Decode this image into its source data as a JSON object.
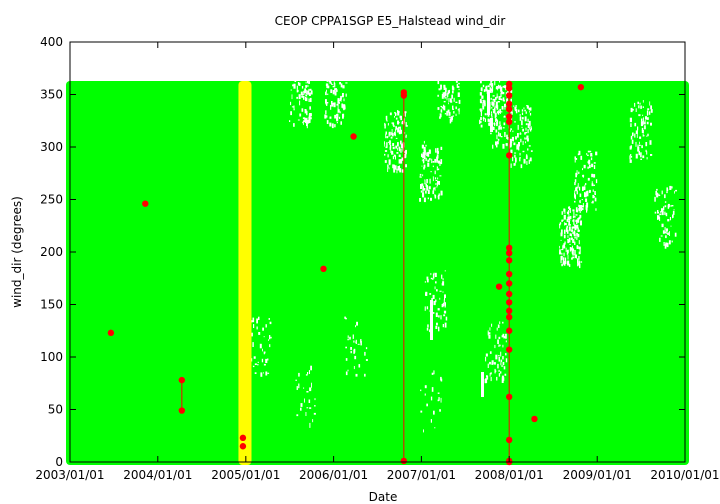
{
  "chart_data": {
    "type": "scatter",
    "title": "CEOP CPPA1SGP E5_Halstead  wind_dir",
    "xlabel": "Date",
    "ylabel": "wind_dir (degrees)",
    "xlim": [
      "2003/01/01",
      "2010/01/01"
    ],
    "ylim": [
      0,
      400
    ],
    "x_ticks": [
      "2003/01/01",
      "2004/01/01",
      "2005/01/01",
      "2006/01/01",
      "2007/01/01",
      "2008/01/01",
      "2009/01/01",
      "2010/01/01"
    ],
    "y_ticks": [
      0,
      50,
      100,
      150,
      200,
      250,
      300,
      350,
      400
    ],
    "grid": false,
    "colors": {
      "main": "#00ff00",
      "band": "#ffff00",
      "flag": "#ff0000"
    },
    "series": [
      {
        "style": "dense_band",
        "color": "#00ff00",
        "x_range": [
          "2003/01/01",
          "2010/01/01"
        ],
        "y_range": [
          0,
          360
        ]
      },
      {
        "style": "dense_band",
        "color": "#ffff00",
        "x_range": [
          "2004/12/18",
          "2005/01/08"
        ],
        "y_range": [
          0,
          360
        ]
      },
      {
        "style": "points",
        "color": "#ff0000",
        "points": [
          {
            "x": "2003/06/20",
            "y": 123
          },
          {
            "x": "2003/11/10",
            "y": 246
          },
          {
            "x": "2004/04/10",
            "y": 78
          },
          {
            "x": "2004/04/10",
            "y": 49
          },
          {
            "x": "2004/12/20",
            "y": 23
          },
          {
            "x": "2004/12/20",
            "y": 15
          },
          {
            "x": "2005/11/20",
            "y": 184
          },
          {
            "x": "2006/03/25",
            "y": 310
          },
          {
            "x": "2006/10/20",
            "y": 352
          },
          {
            "x": "2006/10/20",
            "y": 349
          },
          {
            "x": "2006/10/20",
            "y": 1
          },
          {
            "x": "2007/11/20",
            "y": 167
          },
          {
            "x": "2008/01/01",
            "y": 360
          },
          {
            "x": "2008/01/01",
            "y": 356
          },
          {
            "x": "2008/01/01",
            "y": 349
          },
          {
            "x": "2008/01/01",
            "y": 341
          },
          {
            "x": "2008/01/01",
            "y": 336
          },
          {
            "x": "2008/01/01",
            "y": 329
          },
          {
            "x": "2008/01/01",
            "y": 324
          },
          {
            "x": "2008/01/01",
            "y": 292
          },
          {
            "x": "2008/01/01",
            "y": 204
          },
          {
            "x": "2008/01/01",
            "y": 199
          },
          {
            "x": "2008/01/01",
            "y": 192
          },
          {
            "x": "2008/01/01",
            "y": 179
          },
          {
            "x": "2008/01/01",
            "y": 170
          },
          {
            "x": "2008/01/01",
            "y": 160
          },
          {
            "x": "2008/01/01",
            "y": 152
          },
          {
            "x": "2008/01/01",
            "y": 144
          },
          {
            "x": "2008/01/01",
            "y": 138
          },
          {
            "x": "2008/01/01",
            "y": 125
          },
          {
            "x": "2008/01/01",
            "y": 107
          },
          {
            "x": "2008/01/01",
            "y": 62
          },
          {
            "x": "2008/01/01",
            "y": 21
          },
          {
            "x": "2008/01/01",
            "y": 1
          },
          {
            "x": "2008/01/01",
            "y": 0
          },
          {
            "x": "2008/04/15",
            "y": 41
          },
          {
            "x": "2008/10/25",
            "y": 357
          }
        ],
        "connectors": [
          {
            "x": "2004/04/10",
            "y": [
              49,
              78
            ]
          },
          {
            "x": "2006/10/20",
            "y": [
              1,
              352
            ]
          },
          {
            "x": "2008/01/01",
            "y": [
              0,
              360
            ]
          }
        ]
      }
    ]
  }
}
